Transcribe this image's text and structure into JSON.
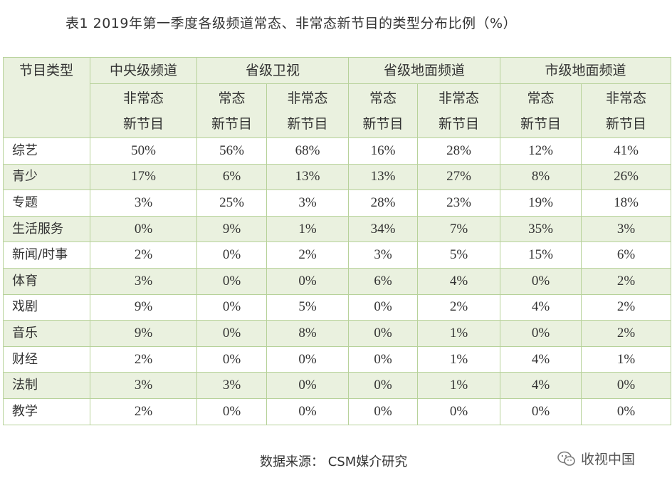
{
  "title": "表1    2019年第一季度各级频道常态、非常态新节目的类型分布比例（%）",
  "header": {
    "row_label": "节目类型",
    "groups": [
      "中央级频道",
      "省级卫视",
      "省级地面频道",
      "市级地面频道"
    ],
    "sub": {
      "c1": [
        "非常态",
        "新节目"
      ],
      "c2": [
        "常态",
        "新节目"
      ],
      "c3": [
        "非常态",
        "新节目"
      ],
      "c4": [
        "常态",
        "新节目"
      ],
      "c5": [
        "非常态",
        "新节目"
      ],
      "c6": [
        "常态",
        "新节目"
      ],
      "c7": [
        "非常态",
        "新节目"
      ]
    }
  },
  "rows": [
    {
      "label": "综艺",
      "values": [
        "50%",
        "56%",
        "68%",
        "16%",
        "28%",
        "12%",
        "41%"
      ]
    },
    {
      "label": "青少",
      "values": [
        "17%",
        "6%",
        "13%",
        "13%",
        "27%",
        "8%",
        "26%"
      ]
    },
    {
      "label": "专题",
      "values": [
        "3%",
        "25%",
        "3%",
        "28%",
        "23%",
        "19%",
        "18%"
      ]
    },
    {
      "label": "生活服务",
      "values": [
        "0%",
        "9%",
        "1%",
        "34%",
        "7%",
        "35%",
        "3%"
      ]
    },
    {
      "label": "新闻/时事",
      "values": [
        "2%",
        "0%",
        "2%",
        "3%",
        "5%",
        "15%",
        "6%"
      ]
    },
    {
      "label": "体育",
      "values": [
        "3%",
        "0%",
        "0%",
        "6%",
        "4%",
        "0%",
        "2%"
      ]
    },
    {
      "label": "戏剧",
      "values": [
        "9%",
        "0%",
        "5%",
        "0%",
        "2%",
        "4%",
        "2%"
      ]
    },
    {
      "label": "音乐",
      "values": [
        "9%",
        "0%",
        "8%",
        "0%",
        "1%",
        "0%",
        "2%"
      ]
    },
    {
      "label": "财经",
      "values": [
        "2%",
        "0%",
        "0%",
        "0%",
        "1%",
        "4%",
        "1%"
      ]
    },
    {
      "label": "法制",
      "values": [
        "3%",
        "3%",
        "0%",
        "0%",
        "1%",
        "4%",
        "0%"
      ]
    },
    {
      "label": "教学",
      "values": [
        "2%",
        "0%",
        "0%",
        "0%",
        "0%",
        "0%",
        "0%"
      ]
    }
  ],
  "source": "数据来源：  CSM媒介研究",
  "watermark": "收视中国",
  "colors": {
    "border": "#b7d29a",
    "shade": "#eaf1df"
  }
}
